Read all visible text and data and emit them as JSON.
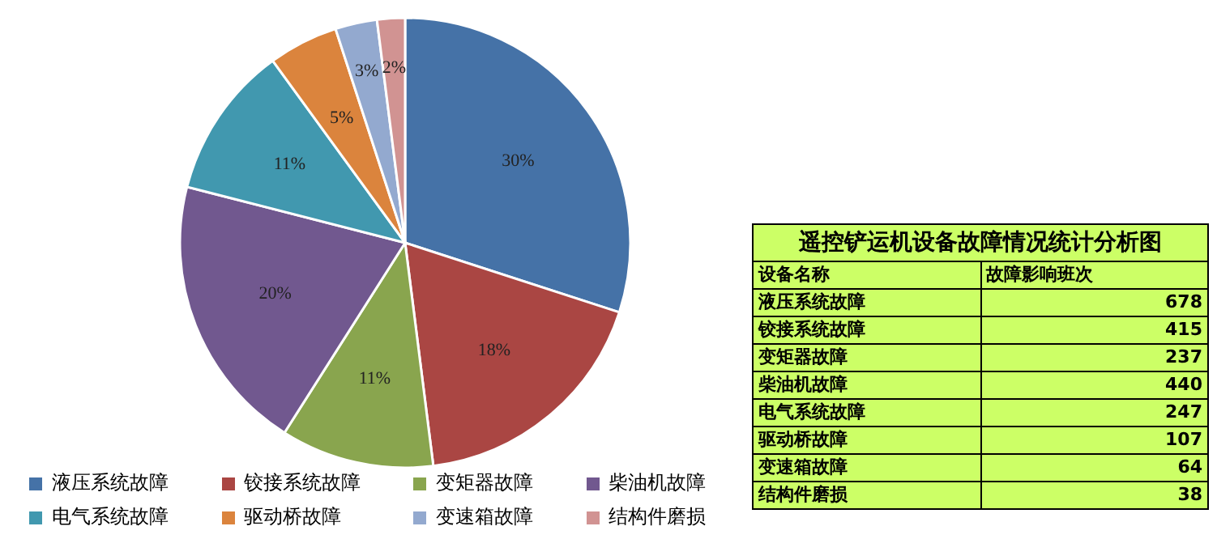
{
  "chart_data": {
    "type": "pie",
    "categories": [
      "液压系统故障",
      "铰接系统故障",
      "变矩器故障",
      "柴油机故障",
      "电气系统故障",
      "驱动桥故障",
      "变速箱故障",
      "结构件磨损"
    ],
    "values": [
      30,
      18,
      11,
      20,
      11,
      5,
      3,
      2
    ],
    "value_labels": [
      "30%",
      "18%",
      "11%",
      "20%",
      "11%",
      "5%",
      "3%",
      "2%"
    ],
    "colors": [
      "#4572a7",
      "#aa4643",
      "#89a54e",
      "#71588f",
      "#4198af",
      "#db843d",
      "#93a9cf",
      "#d19392"
    ],
    "legend": "bottom",
    "annotations": [
      "遥控铲运机设备故障情况统计分析图",
      "设备名称",
      "故障影响班次",
      "678",
      "415",
      "237",
      "440",
      "247",
      "107",
      "64",
      "38"
    ]
  }
}
